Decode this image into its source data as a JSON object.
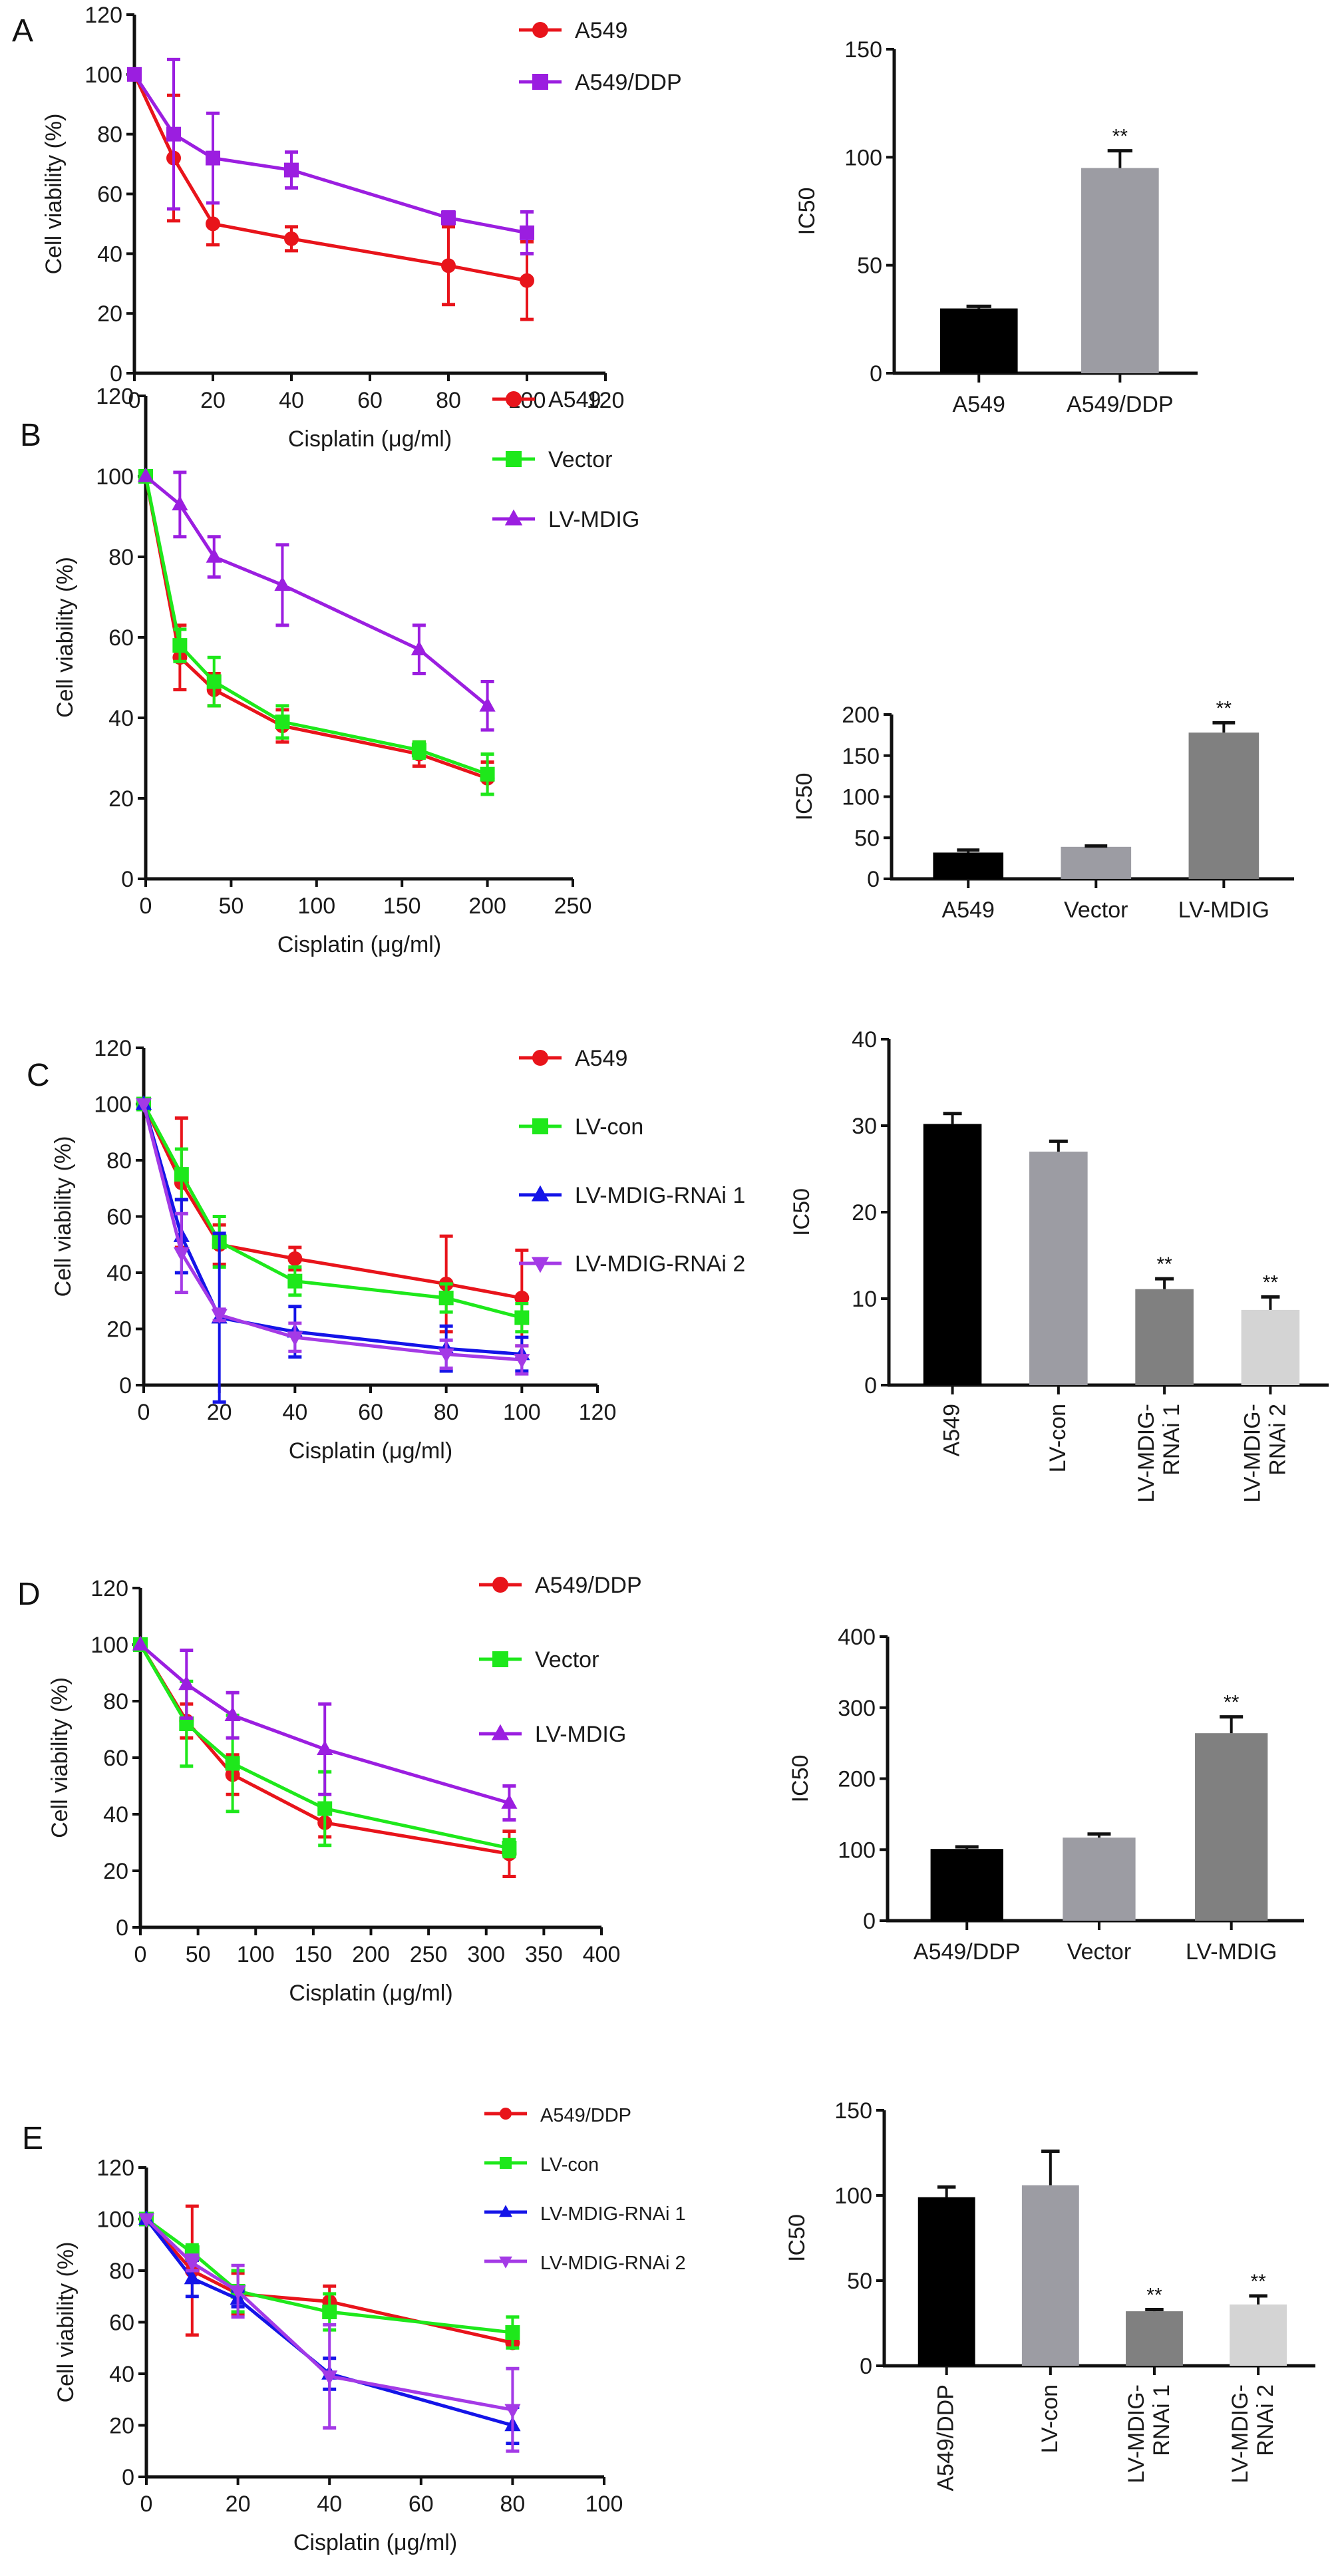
{
  "chart_data": [
    {
      "panel": "A",
      "type": "line",
      "xlabel": "Cisplatin (μg/ml)",
      "ylabel": "Cell viability (%)",
      "xlim": [
        0,
        120
      ],
      "xticks": [
        0,
        20,
        40,
        60,
        80,
        100,
        120
      ],
      "ylim": [
        0,
        120
      ],
      "yticks": [
        0,
        20,
        40,
        60,
        80,
        100,
        120
      ],
      "grid": false,
      "legend_position": "top-right",
      "x": [
        0,
        10,
        20,
        40,
        80,
        100
      ],
      "series": [
        {
          "name": "A549",
          "color": "#e8141b",
          "marker": "circle",
          "values": [
            100,
            72,
            50,
            45,
            36,
            31
          ],
          "errors": [
            1,
            21,
            7,
            4,
            13,
            13
          ]
        },
        {
          "name": "A549/DDP",
          "color": "#9b1ee0",
          "marker": "square",
          "values": [
            100,
            80,
            72,
            68,
            52,
            47
          ],
          "errors": [
            1,
            25,
            15,
            6,
            2,
            7
          ]
        }
      ]
    },
    {
      "panel": "A",
      "type": "bar",
      "xlabel": "",
      "ylabel": "IC50",
      "ylim": [
        0,
        150
      ],
      "yticks": [
        0,
        50,
        100,
        150
      ],
      "grid": false,
      "categories": [
        "A549",
        "A549/DDP"
      ],
      "values": [
        30,
        95
      ],
      "errors": [
        1,
        8
      ],
      "colors": [
        "#000000",
        "#9c9ca3"
      ],
      "annotations": [
        "",
        "**"
      ]
    },
    {
      "panel": "B",
      "type": "line",
      "xlabel": "Cisplatin (μg/ml)",
      "ylabel": "Cell viability (%)",
      "xlim": [
        0,
        250
      ],
      "xticks": [
        0,
        50,
        100,
        150,
        200,
        250
      ],
      "ylim": [
        0,
        120
      ],
      "yticks": [
        0,
        20,
        40,
        60,
        80,
        100,
        120
      ],
      "grid": false,
      "legend_position": "top-right",
      "x": [
        0,
        20,
        40,
        80,
        160,
        200
      ],
      "series": [
        {
          "name": "A549",
          "color": "#e8141b",
          "marker": "circle",
          "values": [
            100,
            55,
            47,
            38,
            31,
            25
          ],
          "errors": [
            1,
            8,
            4,
            4,
            3,
            4
          ]
        },
        {
          "name": "Vector",
          "color": "#1ee81b",
          "marker": "square",
          "values": [
            100,
            58,
            49,
            39,
            32,
            26
          ],
          "errors": [
            1,
            4,
            6,
            4,
            2,
            5
          ]
        },
        {
          "name": "LV-MDIG",
          "color": "#9b1ee0",
          "marker": "triangle-up",
          "values": [
            100,
            93,
            80,
            73,
            57,
            43
          ],
          "errors": [
            1,
            8,
            5,
            10,
            6,
            6
          ]
        }
      ]
    },
    {
      "panel": "B",
      "type": "bar",
      "xlabel": "",
      "ylabel": "IC50",
      "ylim": [
        0,
        200
      ],
      "yticks": [
        0,
        50,
        100,
        150,
        200
      ],
      "grid": false,
      "categories": [
        "A549",
        "Vector",
        "LV-MDIG"
      ],
      "values": [
        32,
        39,
        178
      ],
      "errors": [
        3,
        1,
        12
      ],
      "colors": [
        "#000000",
        "#9c9ca3",
        "#808080"
      ],
      "annotations": [
        "",
        "",
        "**"
      ]
    },
    {
      "panel": "C",
      "type": "line",
      "xlabel": "Cisplatin (μg/ml)",
      "ylabel": "Cell viability (%)",
      "xlim": [
        0,
        120
      ],
      "xticks": [
        0,
        20,
        40,
        60,
        80,
        100,
        120
      ],
      "ylim": [
        0,
        120
      ],
      "yticks": [
        0,
        20,
        40,
        60,
        80,
        100,
        120
      ],
      "grid": false,
      "legend_position": "top-right",
      "x": [
        0,
        10,
        20,
        40,
        80,
        100
      ],
      "series": [
        {
          "name": "A549",
          "color": "#e8141b",
          "marker": "circle",
          "values": [
            100,
            72,
            50,
            45,
            36,
            31
          ],
          "errors": [
            1,
            23,
            7,
            4,
            17,
            17
          ]
        },
        {
          "name": "LV-con",
          "color": "#1ee81b",
          "marker": "square",
          "values": [
            100,
            75,
            51,
            37,
            31,
            24
          ],
          "errors": [
            1,
            9,
            9,
            5,
            5,
            5
          ]
        },
        {
          "name": "LV-MDIG-RNAi 1",
          "color": "#1414e8",
          "marker": "triangle-up",
          "values": [
            100,
            53,
            24,
            19,
            13,
            11
          ],
          "errors": [
            1,
            13,
            30,
            9,
            8,
            6
          ]
        },
        {
          "name": "LV-MDIG-RNAi 2",
          "color": "#a43ae6",
          "marker": "triangle-down",
          "values": [
            100,
            47,
            25,
            17,
            11,
            9
          ],
          "errors": [
            1,
            14,
            2,
            5,
            5,
            5
          ]
        }
      ]
    },
    {
      "panel": "C",
      "type": "bar",
      "xlabel": "",
      "ylabel": "IC50",
      "ylim": [
        0,
        40
      ],
      "yticks": [
        0,
        10,
        20,
        30,
        40
      ],
      "grid": false,
      "categories": [
        "A549",
        "LV-con",
        "LV-MDIG-\nRNAi 1",
        "LV-MDIG-\nRNAi 2"
      ],
      "values": [
        30.2,
        27,
        11.1,
        8.7
      ],
      "errors": [
        1.2,
        1.2,
        1.2,
        1.5
      ],
      "colors": [
        "#000000",
        "#9c9ca3",
        "#808080",
        "#d4d4d4"
      ],
      "annotations": [
        "",
        "",
        "**",
        "**"
      ]
    },
    {
      "panel": "D",
      "type": "line",
      "xlabel": "Cisplatin (μg/ml)",
      "ylabel": "Cell viability (%)",
      "xlim": [
        0,
        400
      ],
      "xticks": [
        0,
        50,
        100,
        150,
        200,
        250,
        300,
        350,
        400
      ],
      "ylim": [
        0,
        120
      ],
      "yticks": [
        0,
        20,
        40,
        60,
        80,
        100,
        120
      ],
      "grid": false,
      "legend_position": "top-right",
      "x": [
        0,
        40,
        80,
        160,
        320
      ],
      "series": [
        {
          "name": "A549/DDP",
          "color": "#e8141b",
          "marker": "circle",
          "values": [
            100,
            73,
            54,
            37,
            26
          ],
          "errors": [
            1,
            6,
            7,
            5,
            8
          ]
        },
        {
          "name": "Vector",
          "color": "#1ee81b",
          "marker": "square",
          "values": [
            100,
            72,
            58,
            42,
            28
          ],
          "errors": [
            1,
            15,
            17,
            13,
            3
          ]
        },
        {
          "name": "LV-MDIG",
          "color": "#9b1ee0",
          "marker": "triangle-up",
          "values": [
            100,
            86,
            75,
            63,
            44
          ],
          "errors": [
            1,
            12,
            8,
            16,
            6
          ]
        }
      ]
    },
    {
      "panel": "D",
      "type": "bar",
      "xlabel": "",
      "ylabel": "IC50",
      "ylim": [
        0,
        400
      ],
      "yticks": [
        0,
        100,
        200,
        300,
        400
      ],
      "grid": false,
      "categories": [
        "A549/DDP",
        "Vector",
        "LV-MDIG"
      ],
      "values": [
        101,
        117,
        264
      ],
      "errors": [
        3,
        5,
        23
      ],
      "colors": [
        "#000000",
        "#9c9ca3",
        "#808080"
      ],
      "annotations": [
        "",
        "",
        "**"
      ]
    },
    {
      "panel": "E",
      "type": "line",
      "xlabel": "Cisplatin (μg/ml)",
      "ylabel": "Cell viability (%)",
      "xlim": [
        0,
        100
      ],
      "xticks": [
        0,
        20,
        40,
        60,
        80,
        100
      ],
      "ylim": [
        0,
        120
      ],
      "yticks": [
        0,
        20,
        40,
        60,
        80,
        100,
        120
      ],
      "grid": false,
      "legend_position": "top-right",
      "x": [
        0,
        10,
        20,
        40,
        80
      ],
      "series": [
        {
          "name": "A549/DDP",
          "color": "#e8141b",
          "marker": "circle",
          "values": [
            100,
            80,
            71,
            68,
            52
          ],
          "errors": [
            1,
            25,
            8,
            6,
            1
          ]
        },
        {
          "name": "LV-con",
          "color": "#1ee81b",
          "marker": "square",
          "values": [
            100,
            87,
            72,
            64,
            56
          ],
          "errors": [
            1,
            3,
            8,
            7,
            6
          ]
        },
        {
          "name": "LV-MDIG-RNAi 1",
          "color": "#1414e8",
          "marker": "triangle-up",
          "values": [
            100,
            77,
            69,
            40,
            20
          ],
          "errors": [
            1,
            7,
            3,
            6,
            7
          ]
        },
        {
          "name": "LV-MDIG-RNAi 2",
          "color": "#a43ae6",
          "marker": "triangle-down",
          "values": [
            100,
            83,
            72,
            39,
            26
          ],
          "errors": [
            1,
            3,
            10,
            20,
            16
          ]
        }
      ]
    },
    {
      "panel": "E",
      "type": "bar",
      "xlabel": "",
      "ylabel": "IC50",
      "ylim": [
        0,
        150
      ],
      "yticks": [
        0,
        50,
        100,
        150
      ],
      "grid": false,
      "categories": [
        "A549/DDP",
        "LV-con",
        "LV-MDIG-\nRNAi 1",
        "LV-MDIG-\nRNAi 2"
      ],
      "values": [
        99,
        106,
        32,
        36
      ],
      "errors": [
        6,
        20,
        1,
        5
      ],
      "colors": [
        "#000000",
        "#9c9ca3",
        "#808080",
        "#d4d4d4"
      ],
      "annotations": [
        "",
        "",
        "**",
        "**"
      ]
    }
  ]
}
